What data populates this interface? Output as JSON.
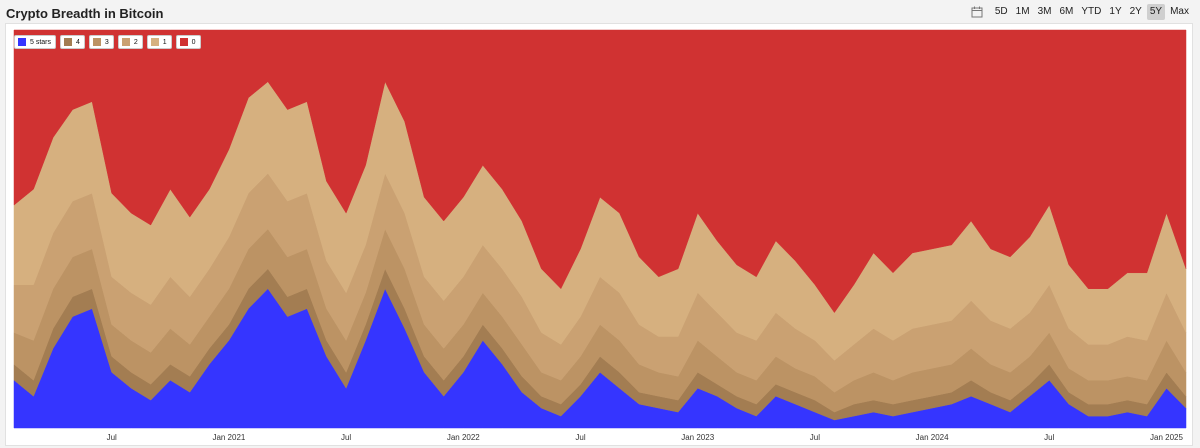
{
  "header": {
    "title": "Crypto Breadth in Bitcoin",
    "calendar_icon": "calendar-icon",
    "ranges": [
      "5D",
      "1M",
      "3M",
      "6M",
      "YTD",
      "1Y",
      "2Y",
      "5Y",
      "Max"
    ],
    "active_range": "5Y"
  },
  "chart_data": {
    "type": "area",
    "stacked": true,
    "stack_to_percent": true,
    "title": "Crypto Breadth in Bitcoin",
    "x_tick_labels": [
      "Jul",
      "Jan 2021",
      "Jul",
      "Jan 2022",
      "Jul",
      "Jan 2023",
      "Jul",
      "Jan 2024",
      "Jul",
      "Jan 2025"
    ],
    "x_range": [
      "2020-02",
      "2025-02"
    ],
    "ylim": [
      0,
      100
    ],
    "y_unit": "% of coins",
    "grid": false,
    "legend_position": "top-left",
    "colors": {
      "5 stars": "#3535ff",
      "4": "#a37d52",
      "3": "#bc9364",
      "2": "#caa172",
      "1": "#d6b07f",
      "0": "#d03232"
    },
    "dates": [
      "2020-02",
      "2020-03",
      "2020-04",
      "2020-05",
      "2020-06",
      "2020-07",
      "2020-08",
      "2020-09",
      "2020-10",
      "2020-11",
      "2020-12",
      "2021-01",
      "2021-02",
      "2021-03",
      "2021-04",
      "2021-05",
      "2021-06",
      "2021-07",
      "2021-08",
      "2021-09",
      "2021-10",
      "2021-11",
      "2021-12",
      "2022-01",
      "2022-02",
      "2022-03",
      "2022-04",
      "2022-05",
      "2022-06",
      "2022-07",
      "2022-08",
      "2022-09",
      "2022-10",
      "2022-11",
      "2022-12",
      "2023-01",
      "2023-02",
      "2023-03",
      "2023-04",
      "2023-05",
      "2023-06",
      "2023-07",
      "2023-08",
      "2023-09",
      "2023-10",
      "2023-11",
      "2023-12",
      "2024-01",
      "2024-02",
      "2024-03",
      "2024-04",
      "2024-05",
      "2024-06",
      "2024-07",
      "2024-08",
      "2024-09",
      "2024-10",
      "2024-11",
      "2024-12",
      "2025-01",
      "2025-02"
    ],
    "series": [
      {
        "name": "5 stars",
        "values": [
          12,
          8,
          20,
          28,
          30,
          14,
          10,
          7,
          12,
          9,
          16,
          22,
          30,
          35,
          28,
          30,
          18,
          10,
          22,
          35,
          25,
          14,
          8,
          14,
          22,
          16,
          9,
          5,
          3,
          8,
          14,
          10,
          6,
          5,
          4,
          10,
          8,
          5,
          3,
          8,
          6,
          4,
          2,
          3,
          4,
          3,
          4,
          5,
          6,
          8,
          6,
          4,
          8,
          12,
          6,
          3,
          3,
          4,
          3,
          10,
          5
        ]
      },
      {
        "name": "4",
        "values": [
          4,
          4,
          5,
          5,
          5,
          4,
          4,
          4,
          4,
          4,
          4,
          4,
          5,
          5,
          5,
          5,
          4,
          4,
          4,
          5,
          5,
          4,
          4,
          4,
          4,
          4,
          4,
          3,
          3,
          3,
          4,
          4,
          3,
          3,
          3,
          4,
          3,
          3,
          3,
          3,
          3,
          3,
          2,
          3,
          3,
          3,
          3,
          3,
          3,
          4,
          3,
          3,
          3,
          4,
          3,
          3,
          3,
          3,
          3,
          4,
          3
        ]
      },
      {
        "name": "3",
        "values": [
          8,
          10,
          10,
          10,
          10,
          8,
          8,
          8,
          9,
          8,
          8,
          9,
          10,
          10,
          10,
          10,
          8,
          8,
          8,
          10,
          10,
          8,
          8,
          8,
          8,
          8,
          8,
          6,
          6,
          7,
          8,
          8,
          7,
          6,
          6,
          8,
          7,
          6,
          6,
          7,
          6,
          6,
          5,
          6,
          7,
          6,
          7,
          7,
          7,
          8,
          7,
          7,
          7,
          8,
          6,
          6,
          6,
          6,
          6,
          8,
          6
        ]
      },
      {
        "name": "2",
        "values": [
          12,
          14,
          14,
          14,
          14,
          12,
          12,
          12,
          13,
          12,
          12,
          13,
          14,
          14,
          14,
          14,
          12,
          12,
          12,
          14,
          14,
          12,
          12,
          12,
          12,
          12,
          12,
          10,
          9,
          10,
          12,
          12,
          10,
          9,
          10,
          12,
          11,
          10,
          10,
          11,
          10,
          9,
          8,
          9,
          11,
          10,
          11,
          11,
          11,
          12,
          11,
          11,
          11,
          12,
          10,
          9,
          9,
          10,
          10,
          12,
          10
        ]
      },
      {
        "name": "1",
        "values": [
          20,
          24,
          24,
          23,
          23,
          21,
          20,
          20,
          22,
          20,
          20,
          22,
          24,
          23,
          23,
          23,
          20,
          20,
          20,
          23,
          23,
          20,
          20,
          20,
          20,
          20,
          19,
          16,
          14,
          17,
          20,
          20,
          17,
          15,
          17,
          20,
          18,
          17,
          16,
          18,
          17,
          14,
          12,
          15,
          19,
          17,
          19,
          19,
          19,
          20,
          18,
          18,
          19,
          20,
          16,
          14,
          14,
          16,
          17,
          20,
          16
        ]
      },
      {
        "name": "0",
        "values": [
          44,
          40,
          27,
          20,
          18,
          41,
          46,
          49,
          40,
          47,
          40,
          30,
          17,
          13,
          20,
          18,
          38,
          46,
          34,
          13,
          23,
          42,
          48,
          42,
          34,
          40,
          48,
          60,
          65,
          55,
          42,
          46,
          57,
          62,
          60,
          46,
          53,
          59,
          62,
          53,
          58,
          64,
          71,
          64,
          56,
          61,
          56,
          55,
          54,
          48,
          55,
          57,
          52,
          44,
          59,
          65,
          65,
          61,
          61,
          46,
          60
        ]
      }
    ]
  }
}
